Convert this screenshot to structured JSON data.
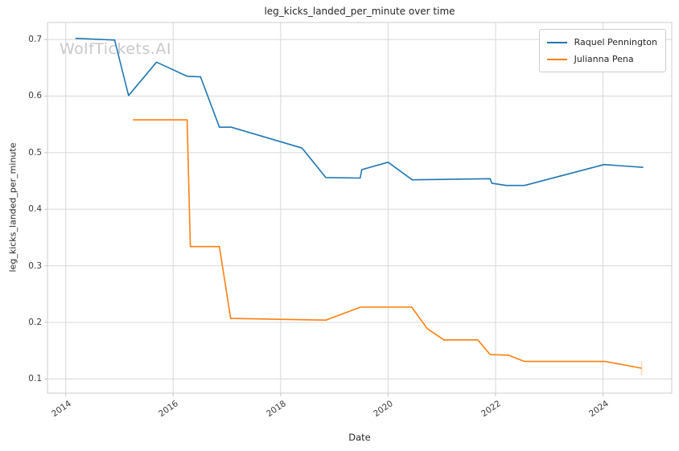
{
  "watermark": "WolfTickets.AI",
  "style": {
    "grid_color": "#d8d8d8",
    "spine_color": "#cccccc",
    "tick_mark_color": "#c4c4c4",
    "text_color": "#262626",
    "watermark_color": "#c8c8c8",
    "background_color": "#ffffff"
  },
  "chart_data": {
    "type": "line",
    "title": "leg_kicks_landed_per_minute over time",
    "xlabel": "Date",
    "ylabel": "leg_kicks_landed_per_minute",
    "xlim": [
      2013.66,
      2025.28
    ],
    "ylim": [
      0.075,
      0.73
    ],
    "xticks": [
      2014,
      2016,
      2018,
      2020,
      2022,
      2024
    ],
    "yticks": [
      0.1,
      0.2,
      0.3,
      0.4,
      0.5,
      0.6,
      0.7
    ],
    "grid": true,
    "legend_position": "upper right",
    "series": [
      {
        "name": "Raquel Pennington",
        "color": "#1f77b4",
        "points": [
          [
            2014.18,
            0.702
          ],
          [
            2014.91,
            0.699
          ],
          [
            2015.17,
            0.601
          ],
          [
            2015.69,
            0.66
          ],
          [
            2016.26,
            0.635
          ],
          [
            2016.51,
            0.634
          ],
          [
            2016.86,
            0.545
          ],
          [
            2017.08,
            0.545
          ],
          [
            2018.4,
            0.508
          ],
          [
            2018.84,
            0.456
          ],
          [
            2019.48,
            0.455
          ],
          [
            2019.51,
            0.47
          ],
          [
            2020.0,
            0.483
          ],
          [
            2020.45,
            0.452
          ],
          [
            2021.9,
            0.454
          ],
          [
            2021.93,
            0.446
          ],
          [
            2022.2,
            0.442
          ],
          [
            2022.54,
            0.442
          ],
          [
            2024.02,
            0.479
          ],
          [
            2024.75,
            0.474
          ]
        ]
      },
      {
        "name": "Julianna Pena",
        "color": "#ff7f0e",
        "end_cap": true,
        "points": [
          [
            2015.25,
            0.558
          ],
          [
            2016.26,
            0.558
          ],
          [
            2016.32,
            0.334
          ],
          [
            2016.86,
            0.334
          ],
          [
            2017.07,
            0.207
          ],
          [
            2018.84,
            0.204
          ],
          [
            2019.49,
            0.227
          ],
          [
            2020.44,
            0.227
          ],
          [
            2020.73,
            0.189
          ],
          [
            2021.04,
            0.169
          ],
          [
            2021.67,
            0.169
          ],
          [
            2021.9,
            0.143
          ],
          [
            2022.24,
            0.142
          ],
          [
            2022.54,
            0.131
          ],
          [
            2024.04,
            0.131
          ],
          [
            2024.72,
            0.119
          ]
        ]
      }
    ]
  }
}
